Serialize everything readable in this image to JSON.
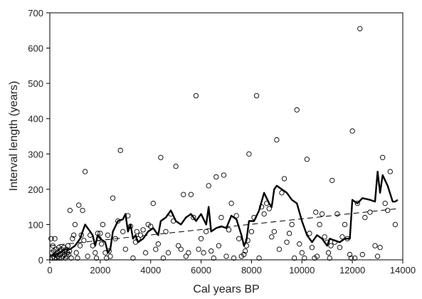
{
  "chart_data": {
    "type": "scatter",
    "xlabel": "Cal years BP",
    "ylabel": "Interval length (years)",
    "xlim": [
      0,
      14000
    ],
    "ylim": [
      0,
      700
    ],
    "xticks": [
      0,
      2000,
      4000,
      6000,
      8000,
      10000,
      12000,
      14000
    ],
    "yticks": [
      0,
      100,
      200,
      300,
      400,
      500,
      600,
      700
    ],
    "xtick_labels": [
      "0",
      "2000",
      "4000",
      "6000",
      "8000",
      "10000",
      "12000",
      "14000"
    ],
    "ytick_labels": [
      "0",
      "100",
      "200",
      "300",
      "400",
      "500",
      "600",
      "700"
    ],
    "grid": false,
    "legend": "none",
    "series": [
      {
        "kind": "points",
        "marker": "open-circle",
        "points": [
          [
            50,
            60
          ],
          [
            80,
            20
          ],
          [
            100,
            5
          ],
          [
            120,
            40
          ],
          [
            140,
            10
          ],
          [
            160,
            25
          ],
          [
            180,
            5
          ],
          [
            200,
            60
          ],
          [
            220,
            15
          ],
          [
            250,
            30
          ],
          [
            270,
            5
          ],
          [
            300,
            20
          ],
          [
            320,
            10
          ],
          [
            350,
            35
          ],
          [
            380,
            5
          ],
          [
            400,
            25
          ],
          [
            420,
            15
          ],
          [
            450,
            30
          ],
          [
            480,
            5
          ],
          [
            500,
            20
          ],
          [
            520,
            10
          ],
          [
            550,
            35
          ],
          [
            580,
            15
          ],
          [
            600,
            25
          ],
          [
            620,
            5
          ],
          [
            650,
            30
          ],
          [
            680,
            10
          ],
          [
            700,
            20
          ],
          [
            720,
            40
          ],
          [
            750,
            15
          ],
          [
            780,
            25
          ],
          [
            800,
            140
          ],
          [
            850,
            5
          ],
          [
            900,
            60
          ],
          [
            950,
            70
          ],
          [
            1000,
            100
          ],
          [
            1050,
            20
          ],
          [
            1100,
            5
          ],
          [
            1150,
            155
          ],
          [
            1200,
            40
          ],
          [
            1250,
            70
          ],
          [
            1300,
            140
          ],
          [
            1350,
            55
          ],
          [
            1400,
            250
          ],
          [
            1500,
            10
          ],
          [
            1600,
            70
          ],
          [
            1700,
            40
          ],
          [
            1800,
            20
          ],
          [
            1850,
            5
          ],
          [
            1900,
            75
          ],
          [
            1950,
            60
          ],
          [
            2000,
            75
          ],
          [
            2050,
            45
          ],
          [
            2100,
            100
          ],
          [
            2200,
            20
          ],
          [
            2250,
            5
          ],
          [
            2300,
            70
          ],
          [
            2350,
            25
          ],
          [
            2400,
            10
          ],
          [
            2500,
            175
          ],
          [
            2600,
            60
          ],
          [
            2700,
            110
          ],
          [
            2800,
            310
          ],
          [
            2900,
            80
          ],
          [
            3000,
            30
          ],
          [
            3100,
            125
          ],
          [
            3200,
            95
          ],
          [
            3300,
            5
          ],
          [
            3400,
            50
          ],
          [
            3450,
            80
          ],
          [
            3500,
            60
          ],
          [
            3600,
            70
          ],
          [
            3700,
            85
          ],
          [
            3800,
            20
          ],
          [
            3900,
            100
          ],
          [
            4000,
            95
          ],
          [
            4100,
            160
          ],
          [
            4200,
            30
          ],
          [
            4300,
            45
          ],
          [
            4400,
            290
          ],
          [
            4500,
            5
          ],
          [
            4600,
            80
          ],
          [
            4700,
            20
          ],
          [
            4800,
            130
          ],
          [
            4900,
            110
          ],
          [
            5000,
            265
          ],
          [
            5100,
            40
          ],
          [
            5200,
            30
          ],
          [
            5300,
            185
          ],
          [
            5400,
            10
          ],
          [
            5500,
            20
          ],
          [
            5600,
            185
          ],
          [
            5700,
            120
          ],
          [
            5800,
            465
          ],
          [
            5900,
            30
          ],
          [
            6000,
            60
          ],
          [
            6100,
            20
          ],
          [
            6200,
            80
          ],
          [
            6300,
            210
          ],
          [
            6400,
            25
          ],
          [
            6500,
            5
          ],
          [
            6600,
            235
          ],
          [
            6700,
            40
          ],
          [
            6800,
            120
          ],
          [
            6900,
            240
          ],
          [
            7000,
            10
          ],
          [
            7100,
            85
          ],
          [
            7200,
            160
          ],
          [
            7300,
            5
          ],
          [
            7400,
            125
          ],
          [
            7500,
            60
          ],
          [
            7600,
            10
          ],
          [
            7700,
            15
          ],
          [
            7750,
            25
          ],
          [
            7800,
            40
          ],
          [
            7850,
            55
          ],
          [
            7900,
            300
          ],
          [
            8000,
            80
          ],
          [
            8100,
            120
          ],
          [
            8200,
            465
          ],
          [
            8300,
            5
          ],
          [
            8400,
            150
          ],
          [
            8500,
            130
          ],
          [
            8600,
            160
          ],
          [
            8700,
            145
          ],
          [
            8800,
            65
          ],
          [
            8900,
            80
          ],
          [
            9000,
            340
          ],
          [
            9100,
            30
          ],
          [
            9200,
            190
          ],
          [
            9300,
            230
          ],
          [
            9400,
            50
          ],
          [
            9500,
            75
          ],
          [
            9600,
            100
          ],
          [
            9700,
            5
          ],
          [
            9800,
            425
          ],
          [
            9900,
            45
          ],
          [
            10000,
            20
          ],
          [
            10100,
            5
          ],
          [
            10200,
            285
          ],
          [
            10300,
            75
          ],
          [
            10400,
            35
          ],
          [
            10500,
            5
          ],
          [
            10550,
            135
          ],
          [
            10600,
            10
          ],
          [
            10700,
            100
          ],
          [
            10800,
            130
          ],
          [
            10900,
            65
          ],
          [
            11000,
            50
          ],
          [
            11050,
            20
          ],
          [
            11100,
            5
          ],
          [
            11150,
            40
          ],
          [
            11200,
            225
          ],
          [
            11300,
            50
          ],
          [
            11400,
            130
          ],
          [
            11500,
            35
          ],
          [
            11600,
            65
          ],
          [
            11700,
            100
          ],
          [
            11800,
            60
          ],
          [
            11900,
            15
          ],
          [
            11950,
            5
          ],
          [
            12000,
            365
          ],
          [
            12100,
            5
          ],
          [
            12200,
            160
          ],
          [
            12300,
            655
          ],
          [
            12400,
            15
          ],
          [
            12500,
            120
          ],
          [
            12700,
            135
          ],
          [
            12900,
            40
          ],
          [
            13000,
            10
          ],
          [
            13100,
            35
          ],
          [
            13200,
            290
          ],
          [
            13300,
            160
          ],
          [
            13400,
            140
          ],
          [
            13500,
            250
          ],
          [
            13700,
            100
          ]
        ]
      },
      {
        "kind": "line",
        "style": "solid-thick",
        "points": [
          [
            0,
            10
          ],
          [
            200,
            15
          ],
          [
            400,
            20
          ],
          [
            600,
            30
          ],
          [
            800,
            30
          ],
          [
            1000,
            40
          ],
          [
            1200,
            60
          ],
          [
            1400,
            100
          ],
          [
            1600,
            80
          ],
          [
            1700,
            70
          ],
          [
            1800,
            40
          ],
          [
            1900,
            70
          ],
          [
            2000,
            60
          ],
          [
            2200,
            50
          ],
          [
            2300,
            20
          ],
          [
            2400,
            30
          ],
          [
            2500,
            80
          ],
          [
            2700,
            110
          ],
          [
            2900,
            115
          ],
          [
            3000,
            130
          ],
          [
            3100,
            80
          ],
          [
            3200,
            100
          ],
          [
            3300,
            60
          ],
          [
            3400,
            70
          ],
          [
            3500,
            50
          ],
          [
            3700,
            60
          ],
          [
            3900,
            80
          ],
          [
            4100,
            90
          ],
          [
            4300,
            70
          ],
          [
            4400,
            110
          ],
          [
            4600,
            120
          ],
          [
            4800,
            140
          ],
          [
            5000,
            110
          ],
          [
            5200,
            100
          ],
          [
            5400,
            120
          ],
          [
            5600,
            130
          ],
          [
            5800,
            110
          ],
          [
            6000,
            130
          ],
          [
            6200,
            100
          ],
          [
            6300,
            150
          ],
          [
            6400,
            80
          ],
          [
            6600,
            90
          ],
          [
            6800,
            95
          ],
          [
            7000,
            90
          ],
          [
            7200,
            125
          ],
          [
            7400,
            115
          ],
          [
            7600,
            70
          ],
          [
            7700,
            40
          ],
          [
            7800,
            55
          ],
          [
            7900,
            110
          ],
          [
            8100,
            110
          ],
          [
            8300,
            140
          ],
          [
            8500,
            190
          ],
          [
            8700,
            160
          ],
          [
            8800,
            150
          ],
          [
            8900,
            200
          ],
          [
            9000,
            210
          ],
          [
            9200,
            200
          ],
          [
            9400,
            190
          ],
          [
            9600,
            170
          ],
          [
            9800,
            160
          ],
          [
            10000,
            110
          ],
          [
            10200,
            70
          ],
          [
            10400,
            50
          ],
          [
            10600,
            70
          ],
          [
            10800,
            60
          ],
          [
            11000,
            40
          ],
          [
            11100,
            60
          ],
          [
            11300,
            55
          ],
          [
            11500,
            50
          ],
          [
            11700,
            60
          ],
          [
            11900,
            60
          ],
          [
            12000,
            170
          ],
          [
            12200,
            160
          ],
          [
            12400,
            175
          ],
          [
            12700,
            170
          ],
          [
            12900,
            165
          ],
          [
            13000,
            250
          ],
          [
            13100,
            190
          ],
          [
            13200,
            240
          ],
          [
            13400,
            210
          ],
          [
            13600,
            165
          ],
          [
            13700,
            165
          ],
          [
            13800,
            170
          ]
        ]
      },
      {
        "kind": "trend",
        "style": "dashed",
        "points": [
          [
            0,
            40
          ],
          [
            13800,
            145
          ]
        ]
      }
    ]
  }
}
